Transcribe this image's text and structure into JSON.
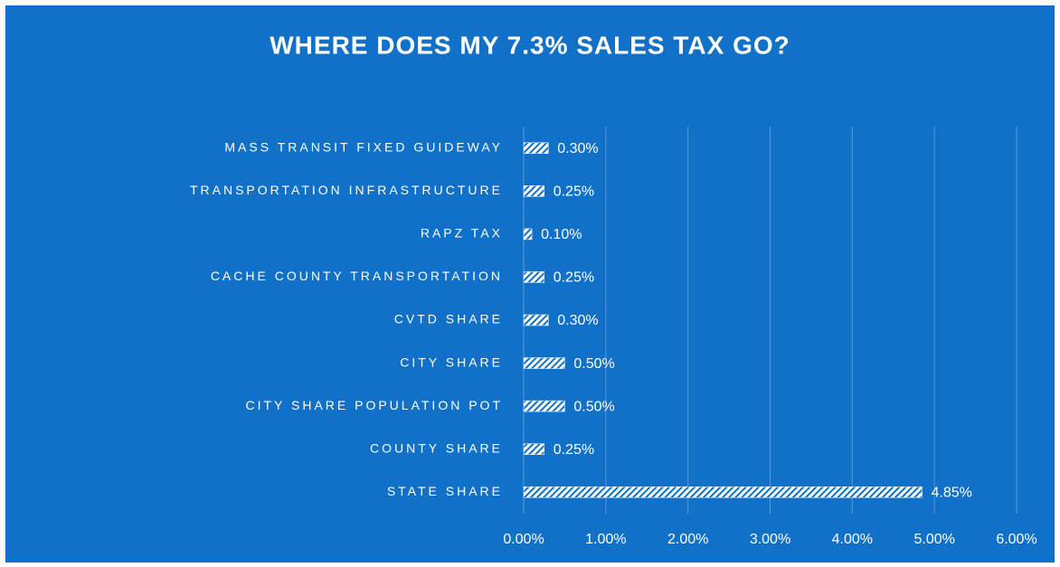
{
  "chart_data": {
    "type": "bar",
    "orientation": "horizontal",
    "title": "WHERE DOES MY 7.3% SALES TAX GO?",
    "categories": [
      "MASS TRANSIT FIXED GUIDEWAY",
      "TRANSPORTATION INFRASTRUCTURE",
      "RAPZ TAX",
      "CACHE COUNTY TRANSPORTATION",
      "CVTD SHARE",
      "CITY SHARE",
      "CITY SHARE POPULATION POT",
      "COUNTY SHARE",
      "STATE SHARE"
    ],
    "values": [
      0.3,
      0.25,
      0.1,
      0.25,
      0.3,
      0.5,
      0.5,
      0.25,
      4.85
    ],
    "value_labels": [
      "0.30%",
      "0.25%",
      "0.10%",
      "0.25%",
      "0.30%",
      "0.50%",
      "0.50%",
      "0.25%",
      "4.85%"
    ],
    "color": "#ffffff",
    "background": "#1170c8",
    "xlim": [
      0,
      6
    ],
    "xticks": [
      {
        "value": 0,
        "label": "0.00%"
      },
      {
        "value": 1,
        "label": "1.00%"
      },
      {
        "value": 2,
        "label": "2.00%"
      },
      {
        "value": 3,
        "label": "3.00%"
      },
      {
        "value": 4,
        "label": "4.00%"
      },
      {
        "value": 5,
        "label": "5.00%"
      },
      {
        "value": 6,
        "label": "6.00%"
      }
    ],
    "grid": true
  }
}
